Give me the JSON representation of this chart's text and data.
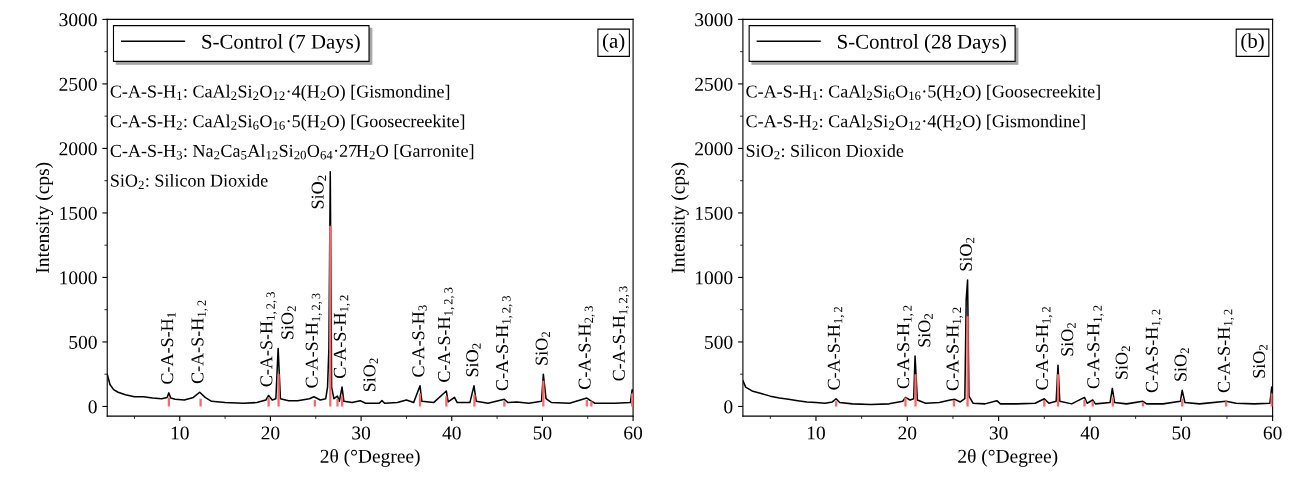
{
  "chart_data": [
    {
      "type": "line",
      "title": "(a)",
      "xlabel": "2θ (°Degree)",
      "ylabel": "Intensity (cps)",
      "xlim": [
        2,
        60
      ],
      "xticks": [
        10,
        20,
        30,
        40,
        50,
        60
      ],
      "ylim": [
        -75,
        3000
      ],
      "yticks": [
        0,
        500,
        1000,
        1500,
        2000,
        2500,
        3000
      ],
      "grid": false,
      "legend": "top left",
      "series": [
        {
          "name": "S-Control (7 Days)",
          "color": "#000000",
          "x": [
            2,
            2.3,
            2.7,
            3.2,
            4,
            5,
            6,
            7,
            8,
            8.6,
            8.8,
            9.0,
            9.5,
            10.5,
            11.5,
            12.2,
            12.8,
            13.5,
            15,
            17,
            18.5,
            19.5,
            19.8,
            20.2,
            20.6,
            20.85,
            21.1,
            22,
            23,
            24.3,
            24.8,
            25.5,
            26.1,
            26.3,
            26.45,
            26.6,
            26.75,
            27.0,
            27.4,
            27.6,
            27.9,
            28.1,
            29,
            29.9,
            30.5,
            32,
            32.3,
            32.6,
            34,
            35,
            35.8,
            36.5,
            36.7,
            38,
            39.4,
            39.6,
            40.3,
            40.6,
            42.0,
            42.45,
            42.7,
            44,
            45.8,
            46.2,
            47.2,
            48.5,
            49.9,
            50.1,
            50.4,
            51,
            53,
            54.9,
            55.3,
            55.8,
            58,
            59.7,
            59.9,
            60
          ],
          "values": [
            250,
            170,
            130,
            110,
            90,
            75,
            75,
            65,
            60,
            70,
            105,
            65,
            55,
            50,
            70,
            110,
            70,
            40,
            30,
            25,
            30,
            50,
            85,
            50,
            60,
            450,
            60,
            45,
            45,
            60,
            75,
            50,
            60,
            150,
            450,
            1820,
            150,
            60,
            80,
            40,
            150,
            40,
            30,
            45,
            25,
            25,
            45,
            25,
            30,
            50,
            30,
            160,
            40,
            30,
            120,
            35,
            70,
            30,
            30,
            160,
            40,
            25,
            55,
            30,
            35,
            25,
            40,
            250,
            60,
            30,
            25,
            65,
            45,
            25,
            25,
            30,
            130,
            120
          ]
        },
        {
          "type": "bar",
          "color": "#ff6666",
          "x": [
            8.8,
            12.3,
            19.8,
            20.9,
            24.9,
            26.6,
            27.4,
            27.9,
            36.5,
            39.4,
            42.5,
            45.8,
            50.1,
            54.9,
            55.4,
            59.9
          ],
          "values": [
            70,
            60,
            70,
            250,
            50,
            1400,
            60,
            80,
            100,
            80,
            90,
            40,
            200,
            50,
            40,
            100
          ]
        }
      ],
      "annotations": [
        "C-A-S-H$_{1}$: CaAl$_{2}$Si$_{2}$O$_{12}$·4(H$_{2}$O) [Gismondine]",
        "C-A-S-H$_{2}$: CaAl$_{2}$Si$_{6}$O$_{16}$·5(H$_{2}$O) [Goosecreekite]",
        "C-A-S-H$_{3}$: Na$_{2}$Ca$_{5}$Al$_{12}$Si$_{20}$O$_{64}$·27H$_{2}$O [Garronite]",
        "SiO$_{2}$: Silicon Dioxide",
        {
          "text": "C-A-S-H$_{1}$",
          "x": 8.8,
          "y": 105
        },
        {
          "text": "C-A-S-H$_{1,2}$",
          "x": 12.2,
          "y": 110
        },
        {
          "text": "C-A-S-H$_{1,2,3}$",
          "x": 19.8,
          "y": 85
        },
        {
          "text": "SiO$_{2}$",
          "x": 20.85,
          "y": 450
        },
        {
          "text": "C-A-S-H$_{1,2,3}$",
          "x": 24.8,
          "y": 75
        },
        {
          "text": "SiO$_{2}$",
          "x": 26.6,
          "y": 1820
        },
        {
          "text": "C-A-S-H$_{1,2}$",
          "x": 27.9,
          "y": 150
        },
        {
          "text": "SiO$_{2}$",
          "x": 29.9,
          "y": 45
        },
        {
          "text": "C-A-S-H$_{3}$",
          "x": 36.5,
          "y": 160
        },
        {
          "text": "C-A-S-H$_{1,2,3}$",
          "x": 39.4,
          "y": 120
        },
        {
          "text": "SiO$_{2}$",
          "x": 42.45,
          "y": 160
        },
        {
          "text": "C-A-S-H$_{1,2,3}$",
          "x": 45.8,
          "y": 55
        },
        {
          "text": "SiO$_{2}$",
          "x": 50.1,
          "y": 250
        },
        {
          "text": "C-A-S-H$_{2,3}$",
          "x": 54.9,
          "y": 65
        },
        {
          "text": "C-A-S-H$_{1,2,3}$",
          "x": 59.9,
          "y": 130
        }
      ]
    },
    {
      "type": "line",
      "title": "(b)",
      "xlabel": "2θ (°Degree)",
      "ylabel": "Intensity (cps)",
      "xlim": [
        2,
        60
      ],
      "xticks": [
        10,
        20,
        30,
        40,
        50,
        60
      ],
      "ylim": [
        -75,
        3000
      ],
      "yticks": [
        0,
        500,
        1000,
        1500,
        2000,
        2500,
        3000
      ],
      "grid": false,
      "legend": "top left",
      "series": [
        {
          "name": "S-Control (28 Days)",
          "color": "#000000",
          "x": [
            2,
            2.3,
            3,
            4,
            5,
            6,
            7,
            8,
            9,
            10,
            11,
            11.8,
            12.2,
            12.6,
            14,
            16,
            18,
            19.5,
            19.8,
            20.3,
            20.7,
            20.85,
            21.1,
            22,
            23.5,
            24.7,
            25.2,
            25.8,
            26.3,
            26.45,
            26.6,
            26.75,
            27.2,
            28.5,
            29.8,
            30.2,
            32,
            34,
            35,
            35.5,
            36.3,
            36.5,
            36.7,
            38,
            39.4,
            39.7,
            40.3,
            40.6,
            42.2,
            42.45,
            42.7,
            44,
            45.8,
            46.2,
            48,
            49.9,
            50.1,
            50.4,
            52,
            54.9,
            56,
            58,
            59.7,
            59.9,
            60
          ],
          "values": [
            200,
            150,
            120,
            100,
            80,
            65,
            55,
            45,
            35,
            30,
            25,
            35,
            60,
            30,
            20,
            15,
            20,
            40,
            70,
            50,
            60,
            390,
            50,
            25,
            30,
            50,
            55,
            35,
            60,
            830,
            980,
            80,
            25,
            20,
            45,
            20,
            20,
            25,
            60,
            25,
            40,
            320,
            40,
            20,
            70,
            25,
            50,
            20,
            30,
            140,
            30,
            20,
            40,
            20,
            20,
            40,
            125,
            30,
            20,
            40,
            25,
            20,
            25,
            150,
            130
          ]
        },
        {
          "type": "bar",
          "color": "#ff6666",
          "x": [
            12.2,
            19.8,
            20.9,
            25.1,
            26.6,
            35.0,
            36.5,
            39.4,
            40.3,
            42.5,
            45.8,
            50.1,
            54.9,
            59.9
          ],
          "values": [
            40,
            70,
            250,
            50,
            700,
            50,
            250,
            50,
            40,
            70,
            30,
            60,
            40,
            100
          ]
        }
      ],
      "annotations": [
        "C-A-S-H$_{1}$: CaAl$_{2}$Si$_{6}$O$_{16}$·5(H$_{2}$O) [Goosecreekite]",
        "C-A-S-H$_{2}$: CaAl$_{2}$Si$_{2}$O$_{12}$·4(H$_{2}$O) [Gismondine]",
        "SiO$_{2}$: Silicon Dioxide",
        {
          "text": "C-A-S-H$_{1,2}$",
          "x": 12.2,
          "y": 60
        },
        {
          "text": "C-A-S-H$_{1,2}$",
          "x": 19.8,
          "y": 70
        },
        {
          "text": "SiO$_{2}$",
          "x": 20.85,
          "y": 390
        },
        {
          "text": "C-A-S-H$_{1,2}$",
          "x": 25.2,
          "y": 55
        },
        {
          "text": "SiO$_{2}$",
          "x": 26.6,
          "y": 980
        },
        {
          "text": "C-A-S-H$_{1,2}$",
          "x": 35,
          "y": 60
        },
        {
          "text": "SiO$_{2}$",
          "x": 36.5,
          "y": 320
        },
        {
          "text": "C-A-S-H$_{1,2}$",
          "x": 39.4,
          "y": 70
        },
        {
          "text": "SiO$_{2}$",
          "x": 42.45,
          "y": 140
        },
        {
          "text": "C-A-S-H$_{1,2}$",
          "x": 45.8,
          "y": 40
        },
        {
          "text": "SiO$_{2}$",
          "x": 50.1,
          "y": 125
        },
        {
          "text": "C-A-S-H$_{1,2}$",
          "x": 54.9,
          "y": 40
        },
        {
          "text": "SiO$_{2}$",
          "x": 59.9,
          "y": 150
        }
      ]
    }
  ]
}
